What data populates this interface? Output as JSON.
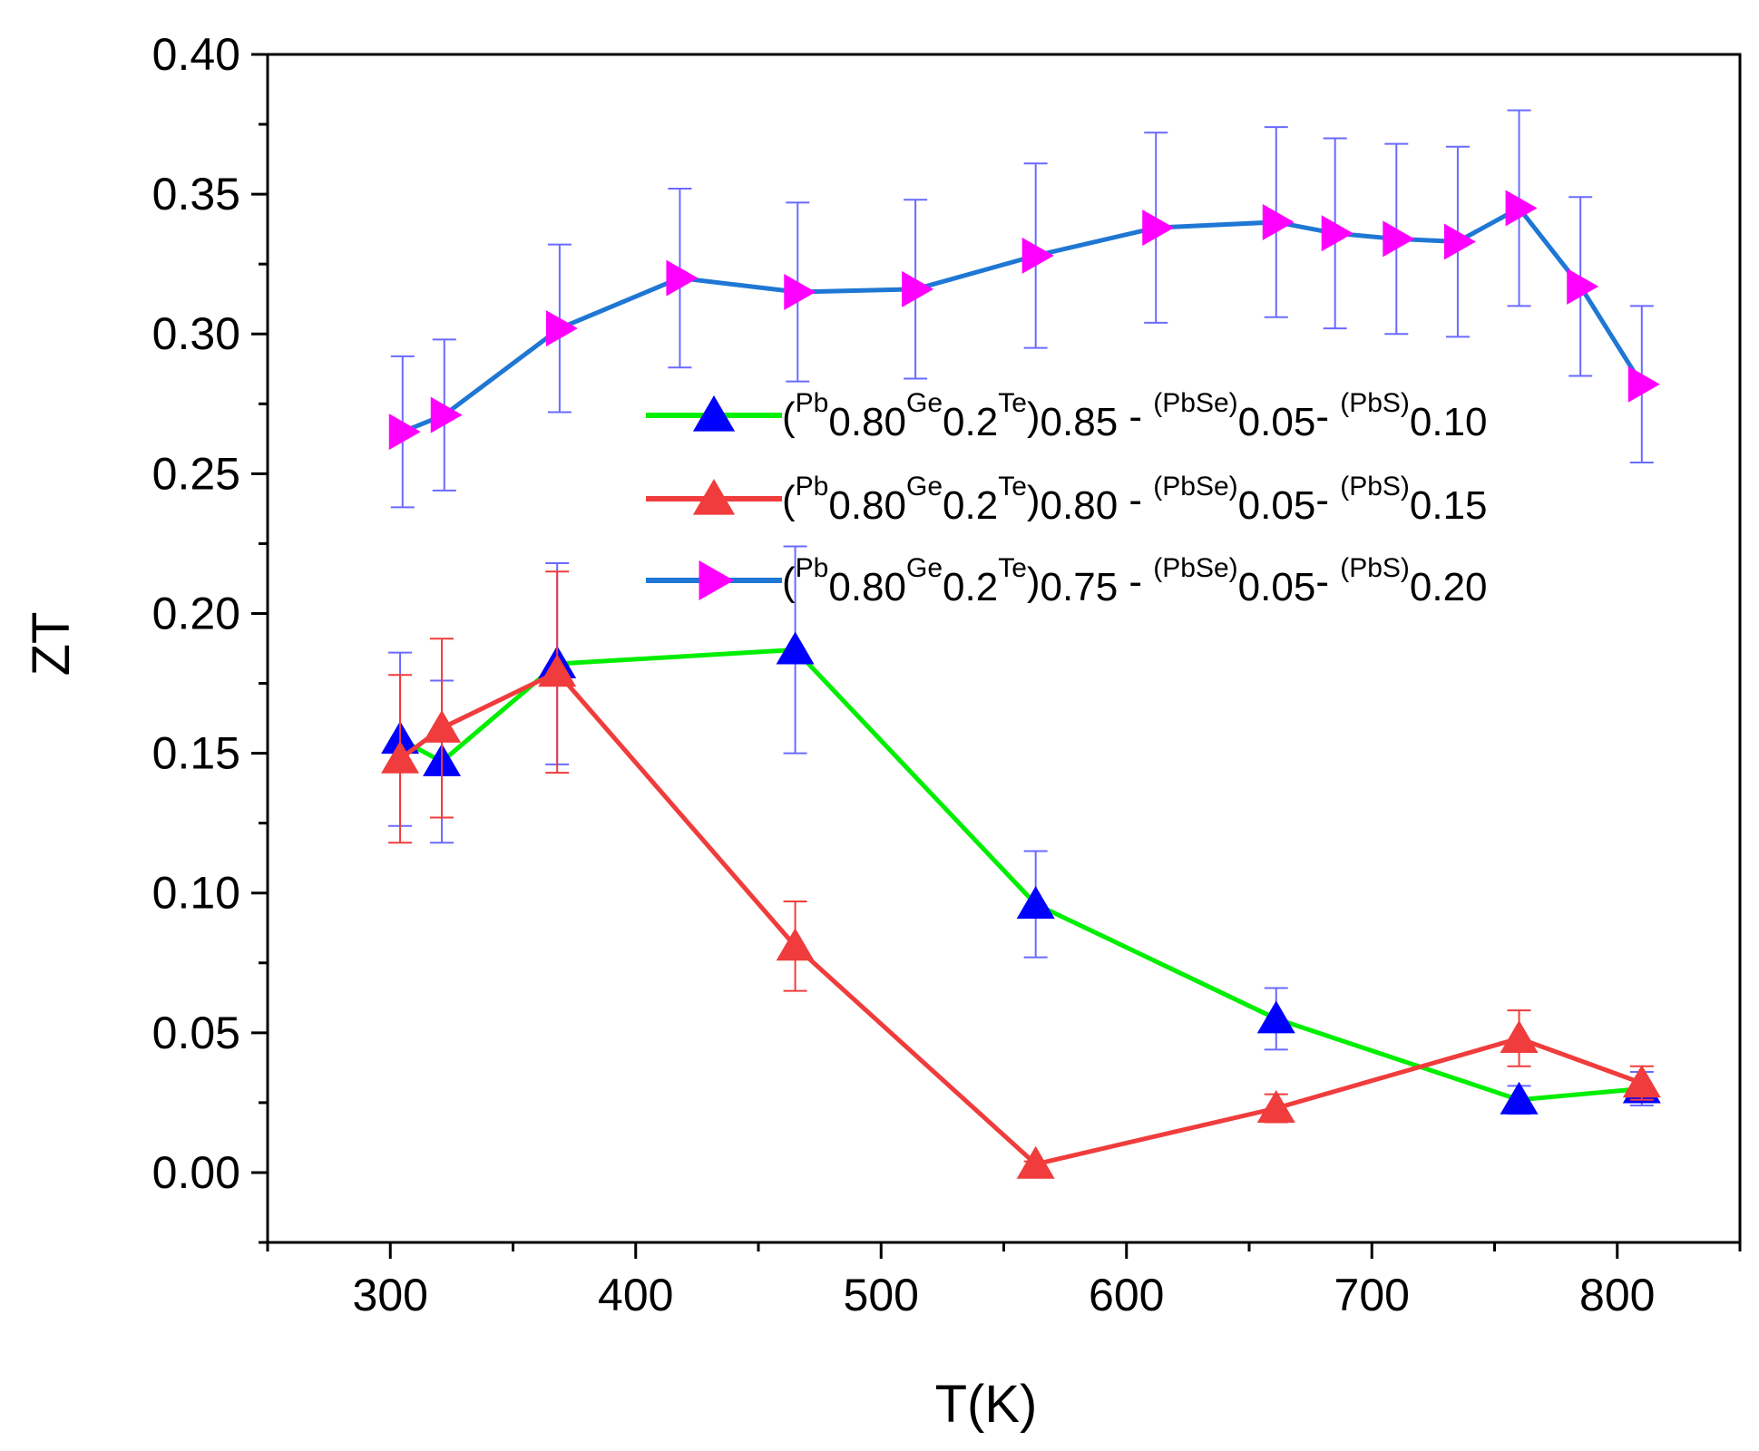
{
  "chart_data": {
    "type": "line",
    "xlabel": "T(K)",
    "ylabel": "ZT",
    "xlim": [
      250,
      850
    ],
    "ylim": [
      -0.025,
      0.4
    ],
    "xticks": [
      300,
      400,
      500,
      600,
      700,
      800
    ],
    "yticks": [
      0.0,
      0.05,
      0.1,
      0.15,
      0.2,
      0.25,
      0.3,
      0.35,
      0.4
    ],
    "xtick_labels": [
      "300",
      "400",
      "500",
      "600",
      "700",
      "800"
    ],
    "ytick_labels": [
      "0.00",
      "0.05",
      "0.10",
      "0.15",
      "0.20",
      "0.25",
      "0.30",
      "0.35",
      "0.40"
    ],
    "legend_position": "upper-right",
    "series": [
      {
        "legend": {
          "parts": [
            {
              "t": "(",
              "s": "n"
            },
            {
              "t": "Pb",
              "s": "u"
            },
            {
              "t": "0.80",
              "s": "d"
            },
            {
              "t": "Ge",
              "s": "u"
            },
            {
              "t": "0.2",
              "s": "d"
            },
            {
              "t": "Te",
              "s": "u"
            },
            {
              "t": ")",
              "s": "n"
            },
            {
              "t": "0.85",
              "s": "d"
            },
            {
              "t": " - ",
              "s": "n"
            },
            {
              "t": "(PbSe)",
              "s": "u"
            },
            {
              "t": "0.05",
              "s": "d"
            },
            {
              "t": "- ",
              "s": "n"
            },
            {
              "t": "(PbS)",
              "s": "u"
            },
            {
              "t": "0.10",
              "s": "d"
            }
          ]
        },
        "line_color": "#00ee00",
        "marker_color": "#0000ff",
        "error_color": "#6a6aff",
        "marker": "triangle-up",
        "x": [
          304,
          321,
          368,
          465,
          563,
          661,
          760,
          810
        ],
        "y": [
          0.155,
          0.147,
          0.182,
          0.187,
          0.096,
          0.055,
          0.026,
          0.03
        ],
        "err": [
          0.031,
          0.029,
          0.036,
          0.037,
          0.019,
          0.011,
          0.005,
          0.006
        ]
      },
      {
        "legend": {
          "parts": [
            {
              "t": "(",
              "s": "n"
            },
            {
              "t": "Pb",
              "s": "u"
            },
            {
              "t": "0.80",
              "s": "d"
            },
            {
              "t": "Ge",
              "s": "u"
            },
            {
              "t": "0.2",
              "s": "d"
            },
            {
              "t": "Te",
              "s": "u"
            },
            {
              "t": ")",
              "s": "n"
            },
            {
              "t": "0.80",
              "s": "d"
            },
            {
              "t": " - ",
              "s": "n"
            },
            {
              "t": "(PbSe)",
              "s": "u"
            },
            {
              "t": "0.05",
              "s": "d"
            },
            {
              "t": "- ",
              "s": "n"
            },
            {
              "t": "(PbS)",
              "s": "u"
            },
            {
              "t": "0.15",
              "s": "d"
            }
          ]
        },
        "line_color": "#f03c3c",
        "marker_color": "#f03c3c",
        "error_color": "#f03c3c",
        "marker": "triangle-up",
        "x": [
          304,
          321,
          368,
          465,
          563,
          661,
          760,
          810
        ],
        "y": [
          0.148,
          0.159,
          0.179,
          0.081,
          0.003,
          0.023,
          0.048,
          0.032
        ],
        "err": [
          0.03,
          0.032,
          0.036,
          0.016,
          0.001,
          0.005,
          0.01,
          0.006
        ]
      },
      {
        "legend": {
          "parts": [
            {
              "t": "(",
              "s": "n"
            },
            {
              "t": "Pb",
              "s": "u"
            },
            {
              "t": "0.80",
              "s": "d"
            },
            {
              "t": "Ge",
              "s": "u"
            },
            {
              "t": "0.2",
              "s": "d"
            },
            {
              "t": "Te",
              "s": "u"
            },
            {
              "t": ")",
              "s": "n"
            },
            {
              "t": "0.75",
              "s": "d"
            },
            {
              "t": " - ",
              "s": "n"
            },
            {
              "t": "(PbSe)",
              "s": "u"
            },
            {
              "t": "0.05",
              "s": "d"
            },
            {
              "t": "- ",
              "s": "n"
            },
            {
              "t": "(PbS)",
              "s": "u"
            },
            {
              "t": "0.20",
              "s": "d"
            }
          ]
        },
        "line_color": "#1f77d4",
        "marker_color": "#ff00ff",
        "error_color": "#6a6aff",
        "marker": "triangle-right",
        "x": [
          305,
          322,
          369,
          418,
          466,
          514,
          563,
          612,
          661,
          685,
          710,
          735,
          760,
          785,
          810
        ],
        "y": [
          0.265,
          0.271,
          0.302,
          0.32,
          0.315,
          0.316,
          0.328,
          0.338,
          0.34,
          0.336,
          0.334,
          0.333,
          0.345,
          0.317,
          0.282
        ],
        "err": [
          0.027,
          0.027,
          0.03,
          0.032,
          0.032,
          0.032,
          0.033,
          0.034,
          0.034,
          0.034,
          0.034,
          0.034,
          0.035,
          0.032,
          0.028
        ]
      }
    ]
  }
}
